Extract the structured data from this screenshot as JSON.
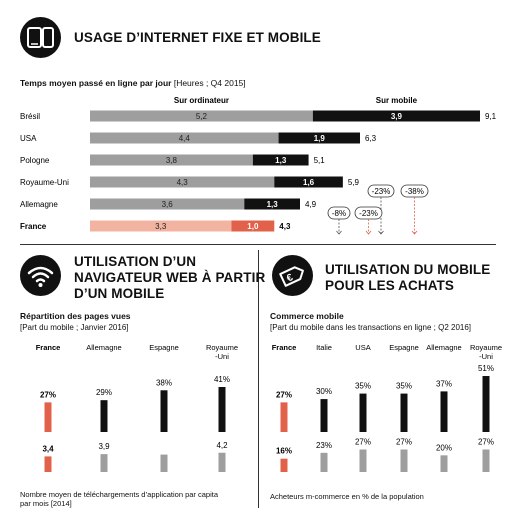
{
  "section1": {
    "title": "USAGE D’INTERNET FIXE ET MOBILE",
    "subtitle_bold": "Temps moyen passé en ligne par jour",
    "subtitle_light": " [Heures ; Q4 2015]",
    "col_desktop": "Sur ordinateur",
    "col_mobile": "Sur mobile"
  },
  "section2": {
    "title_lines": [
      "UTILISATION D’UN",
      "NAVIGATEUR WEB À PARTIR",
      "D’UN MOBILE"
    ],
    "chart_title": "Répartition des pages vues",
    "chart_subtitle": "[Part du mobile ; Janvier 2016]",
    "footnote_lines": [
      "Nombre moyen de téléchargements d’application par capita",
      "par mois [2014]"
    ]
  },
  "section3": {
    "title_lines": [
      "UTILISATION DU MOBILE",
      "POUR LES ACHATS"
    ],
    "chart_title": "Commerce mobile",
    "chart_subtitle": "[Part du mobile dans les transactions en ligne ; Q2 2016]",
    "footnote": "Acheteurs m-commerce en % de la population"
  },
  "colors": {
    "dark": "#111111",
    "gray": "#9e9e9e",
    "salmon": "#f2b4a0",
    "orange": "#e2614a"
  },
  "chart_data": [
    {
      "type": "bar",
      "orientation": "horizontal-stacked",
      "categories": [
        "Brésil",
        "USA",
        "Pologne",
        "Royaume-Uni",
        "Allemagne",
        "France"
      ],
      "series": [
        {
          "name": "Sur ordinateur",
          "values": [
            5.2,
            4.4,
            3.8,
            4.3,
            3.6,
            3.3
          ],
          "labels": [
            "5,2",
            "4,4",
            "3,8",
            "4,3",
            "3,6",
            "3,3"
          ]
        },
        {
          "name": "Sur mobile",
          "values": [
            3.9,
            1.9,
            1.3,
            1.6,
            1.3,
            1.0
          ],
          "labels": [
            "3,9",
            "1,9",
            "1,3",
            "1,6",
            "1,3",
            "1,0"
          ]
        }
      ],
      "totals": [
        "9,1",
        "6,3",
        "5,1",
        "5,9",
        "4,9",
        "4,3"
      ],
      "highlight": "France",
      "annotations": [
        "-23%",
        "-38%",
        "-8%",
        "-23%"
      ],
      "xlim": [
        0,
        9.1
      ]
    },
    {
      "type": "bar",
      "categories": [
        "France",
        "Allemagne",
        "Espagne",
        "Royaume-Uni"
      ],
      "category_lines": [
        [
          "France"
        ],
        [
          "Allemagne"
        ],
        [
          "Espagne"
        ],
        [
          "Royaume",
          "-Uni"
        ]
      ],
      "series": [
        {
          "name": "",
          "values": [
            27,
            29,
            38,
            41
          ],
          "labels": [
            "27%",
            "29%",
            "38%",
            "41%"
          ]
        },
        {
          "name": "",
          "values": [
            3.4,
            3.9,
            3.8,
            4.2
          ],
          "labels": [
            "3,4",
            "3,9",
            "",
            "4,2"
          ]
        }
      ],
      "highlight": "France"
    },
    {
      "type": "bar",
      "categories": [
        "France",
        "Italie",
        "USA",
        "Espagne",
        "Allemagne",
        "Royaume-Uni"
      ],
      "category_lines": [
        [
          "France"
        ],
        [
          "Italie"
        ],
        [
          "USA"
        ],
        [
          "Espagne"
        ],
        [
          "Allemagne"
        ],
        [
          "Royaume",
          "-Uni"
        ]
      ],
      "series": [
        {
          "name": "",
          "values": [
            27,
            30,
            35,
            35,
            37,
            51
          ],
          "labels": [
            "27%",
            "30%",
            "35%",
            "35%",
            "37%",
            "51%"
          ]
        },
        {
          "name": "",
          "values": [
            16,
            23,
            27,
            27,
            20,
            27
          ],
          "labels": [
            "16%",
            "23%",
            "27%",
            "27%",
            "20%",
            "27%"
          ]
        }
      ],
      "highlight": "France"
    }
  ]
}
